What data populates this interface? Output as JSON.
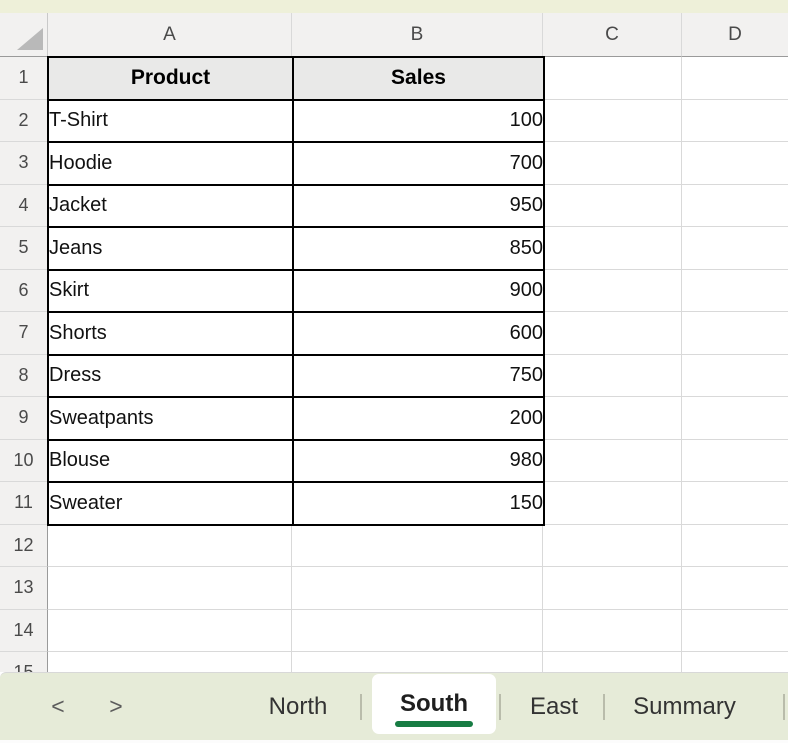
{
  "spreadsheet": {
    "column_headers": [
      "A",
      "B",
      "C",
      "D"
    ],
    "row_headers": [
      "1",
      "2",
      "3",
      "4",
      "5",
      "6",
      "7",
      "8",
      "9",
      "10",
      "11",
      "12",
      "13",
      "14",
      "15"
    ],
    "table": {
      "product_header": "Product",
      "sales_header": "Sales",
      "rows": [
        {
          "product": "T-Shirt",
          "sales": "100"
        },
        {
          "product": "Hoodie",
          "sales": "700"
        },
        {
          "product": "Jacket",
          "sales": "950"
        },
        {
          "product": "Jeans",
          "sales": "850"
        },
        {
          "product": "Skirt",
          "sales": "900"
        },
        {
          "product": "Shorts",
          "sales": "600"
        },
        {
          "product": "Dress",
          "sales": "750"
        },
        {
          "product": "Sweatpants",
          "sales": "200"
        },
        {
          "product": "Blouse",
          "sales": "980"
        },
        {
          "product": "Sweater",
          "sales": "150"
        }
      ]
    }
  },
  "sheet_tabs": {
    "prev_label": "<",
    "next_label": ">",
    "tabs": [
      {
        "label": "North",
        "active": false
      },
      {
        "label": "South",
        "active": true
      },
      {
        "label": "East",
        "active": false
      },
      {
        "label": "Summary",
        "active": false
      }
    ]
  },
  "colors": {
    "accent_green": "#177C43",
    "top_strip_bg": "#EEF0D9",
    "tab_bar_bg": "#E6EBD8",
    "header_bg": "#F2F1F0",
    "table_header_bg": "#E9E9E8",
    "gridline": "#D9D9D9"
  }
}
